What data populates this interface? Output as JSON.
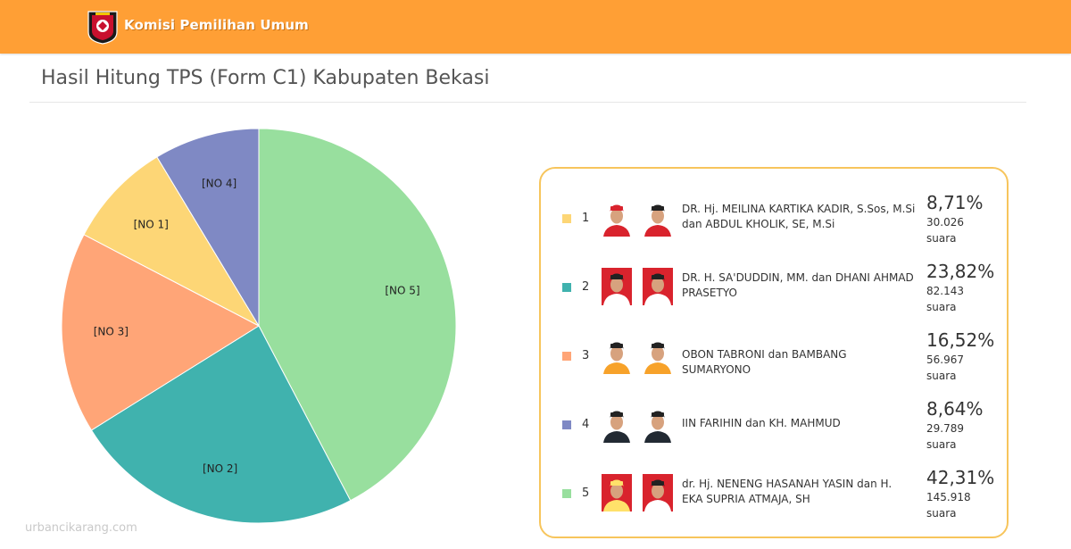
{
  "header": {
    "brand": "Komisi Pemilihan Umum",
    "bg_color": "#ff9f35",
    "logo_icon": "kpu-logo"
  },
  "page": {
    "title": "Hasil Hitung TPS (Form C1) Kabupaten Bekasi"
  },
  "chart_data": {
    "type": "pie",
    "title": "",
    "legend_placement": "right",
    "categories": [
      "[NO 5]",
      "[NO 2]",
      "[NO 3]",
      "[NO 1]",
      "[NO 4]"
    ],
    "values": [
      42.31,
      23.82,
      16.52,
      8.71,
      8.64
    ],
    "colors": [
      "#98df9e",
      "#40b2ae",
      "#ffa577",
      "#fdd676",
      "#7f89c4"
    ],
    "start_angle_deg": 0,
    "direction": "clockwise"
  },
  "legend": {
    "items": [
      {
        "no": "1",
        "color": "#fdd676",
        "names": "DR. Hj. MEILINA KARTIKA KADIR, S.Sos, M.Si dan ABDUL KHOLIK, SE, M.Si",
        "percent": "8,71%",
        "votes": "30.026",
        "unit": "suara"
      },
      {
        "no": "2",
        "color": "#40b2ae",
        "names": "DR. H. SA'DUDDIN, MM. dan DHANI AHMAD PRASETYO",
        "percent": "23,82%",
        "votes": "82.143",
        "unit": "suara"
      },
      {
        "no": "3",
        "color": "#ffa577",
        "names": "OBON TABRONI dan BAMBANG SUMARYONO",
        "percent": "16,52%",
        "votes": "56.967",
        "unit": "suara"
      },
      {
        "no": "4",
        "color": "#7f89c4",
        "names": "IIN FARIHIN dan KH. MAHMUD",
        "percent": "8,64%",
        "votes": "29.789",
        "unit": "suara"
      },
      {
        "no": "5",
        "color": "#98df9e",
        "names": "dr. Hj. NENENG HASANAH YASIN dan H. EKA SUPRIA ATMAJA, SH",
        "percent": "42,31%",
        "votes": "145.918",
        "unit": "suara"
      }
    ]
  },
  "candidate_photos": [
    {
      "bg": [
        "#ffffff",
        "#ffffff"
      ],
      "shirt": [
        "#d9232d",
        "#d9232d"
      ],
      "hat": [
        "#d9232d",
        "#222222"
      ]
    },
    {
      "bg": [
        "#d9232d",
        "#d9232d"
      ],
      "shirt": [
        "#ffffff",
        "#ffffff"
      ],
      "hat": [
        "#222222",
        "#222222"
      ]
    },
    {
      "bg": [
        "#ffffff",
        "#ffffff"
      ],
      "shirt": [
        "#f7a22a",
        "#f7a22a"
      ],
      "hat": [
        "#222222",
        "#222222"
      ]
    },
    {
      "bg": [
        "#ffffff",
        "#ffffff"
      ],
      "shirt": [
        "#222a33",
        "#222a33"
      ],
      "hat": [
        "#222222",
        "#222222"
      ]
    },
    {
      "bg": [
        "#d9232d",
        "#d9232d"
      ],
      "shirt": [
        "#ffe16a",
        "#ffffff"
      ],
      "hat": [
        "#ffe16a",
        "#222222"
      ]
    }
  ],
  "watermark": "urbancikarang.com"
}
